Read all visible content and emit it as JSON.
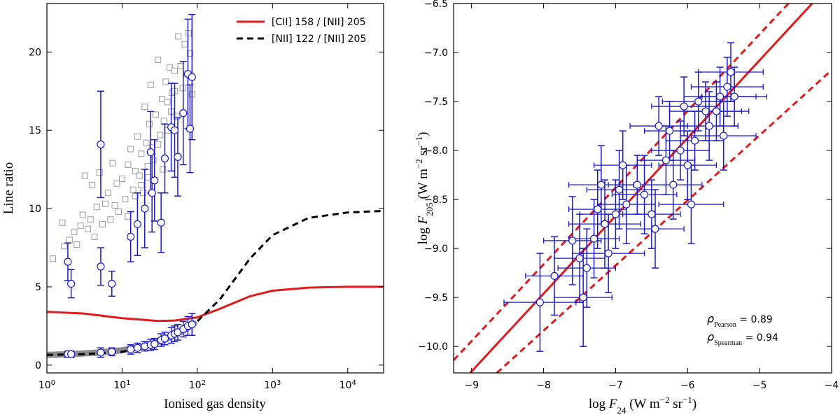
{
  "chart_data": [
    {
      "type": "scatter",
      "x_label": [
        {
          "text": "Ionised gas density"
        }
      ],
      "y_label": [
        {
          "text": "Line ratio"
        }
      ],
      "xscale": "log",
      "xlim": [
        1,
        30000
      ],
      "ylim": [
        -0.5,
        23.1
      ],
      "xticks": [
        {
          "value": 1,
          "base": "10",
          "exp": "0"
        },
        {
          "value": 10,
          "base": "10",
          "exp": "1"
        },
        {
          "value": 100,
          "base": "10",
          "exp": "2"
        },
        {
          "value": 1000,
          "base": "10",
          "exp": "3"
        },
        {
          "value": 10000,
          "base": "10",
          "exp": "4"
        }
      ],
      "yticks": [
        0,
        5,
        10,
        15,
        20
      ],
      "legend": "upper right",
      "series": [
        {
          "marker": "square",
          "color": "#9a9a9a",
          "x": [
            1.2,
            1.6,
            1.7,
            2.0,
            2.3,
            2.5,
            2.8,
            3.0,
            3.2,
            3.5,
            3.8,
            4.0,
            4.3,
            4.6,
            5.0,
            5.5,
            6.0,
            6.5,
            7.0,
            7.5,
            8.0,
            8.5,
            9.0,
            10,
            11,
            12,
            13,
            14,
            15,
            16,
            17,
            18,
            19,
            20,
            21,
            22,
            23,
            24,
            26,
            28,
            30,
            32,
            34,
            36,
            38,
            40,
            43,
            46,
            50,
            53,
            56,
            60,
            64,
            68,
            72,
            76,
            80,
            85,
            12,
            15,
            18,
            22,
            25,
            30,
            35,
            40,
            45,
            50
          ],
          "values": [
            6.8,
            9.1,
            7.6,
            8.0,
            8.5,
            7.7,
            8.9,
            9.6,
            12.1,
            8.7,
            9.3,
            11.5,
            8.2,
            10.1,
            12.3,
            9.0,
            10.3,
            11.0,
            9.3,
            12.9,
            10.2,
            11.6,
            9.8,
            11.9,
            10.6,
            12.8,
            13.8,
            11.2,
            12.4,
            14.6,
            12.1,
            13.5,
            11.0,
            16.5,
            14.2,
            12.7,
            15.4,
            17.9,
            13.1,
            16.0,
            19.5,
            14.7,
            17.0,
            15.6,
            18.1,
            16.8,
            19.0,
            17.4,
            18.8,
            15.9,
            21.0,
            19.1,
            17.7,
            20.5,
            18.6,
            21.2,
            19.9,
            17.3,
            9.5,
            10.8,
            11.5,
            12.0,
            13.9,
            14.1,
            12.5,
            15.0,
            16.2,
            17.5
          ]
        },
        {
          "line": "band",
          "color": "#808080",
          "x": [
            1,
            2,
            5,
            10,
            20,
            40,
            70,
            90
          ],
          "values": [
            0.65,
            0.7,
            0.8,
            0.95,
            1.2,
            1.7,
            2.3,
            2.65
          ]
        },
        {
          "name": "[CII] 158 / [NII] 205",
          "line": "solid",
          "color": "#e31a1c",
          "x": [
            1,
            3,
            10,
            30,
            50,
            100,
            200,
            500,
            1000,
            3000,
            10000,
            30000
          ],
          "values": [
            3.4,
            3.3,
            3.0,
            2.82,
            2.85,
            3.05,
            3.6,
            4.4,
            4.75,
            4.95,
            5.0,
            5.0
          ]
        },
        {
          "name": "[NII] 122 / [NII] 205",
          "line": "dashed",
          "color": "#000000",
          "x": [
            1,
            3,
            10,
            30,
            50,
            100,
            200,
            500,
            1000,
            3000,
            10000,
            30000
          ],
          "values": [
            0.65,
            0.7,
            0.85,
            1.4,
            1.9,
            2.8,
            4.2,
            6.8,
            8.3,
            9.4,
            9.75,
            9.85
          ]
        },
        {
          "marker": "circle",
          "color": "#1a1acc",
          "x": [
            1.9,
            2.1,
            5.2,
            5.2,
            7.3,
            13,
            16,
            20,
            24,
            25,
            27,
            33,
            37,
            45,
            50,
            55,
            65,
            75,
            80,
            85
          ],
          "values": [
            6.6,
            5.2,
            14.1,
            6.3,
            5.2,
            8.2,
            9.0,
            10.0,
            13.6,
            11.0,
            11.8,
            9.1,
            13.2,
            15.2,
            15.0,
            13.3,
            16.1,
            18.6,
            15.1,
            18.4
          ],
          "errors": [
            1.2,
            0.9,
            3.4,
            1.2,
            0.8,
            1.6,
            2.0,
            2.5,
            2.6,
            2.5,
            2.6,
            1.9,
            2.2,
            2.8,
            3.0,
            2.5,
            3.3,
            3.5,
            2.8,
            4.0
          ]
        },
        {
          "marker": "circle",
          "color": "#1a1acc",
          "x": [
            1.9,
            2.1,
            5.2,
            7.3,
            13,
            16,
            20,
            24,
            27,
            33,
            37,
            45,
            50,
            55,
            65,
            75,
            85
          ],
          "values": [
            0.7,
            0.7,
            0.8,
            0.85,
            1.0,
            1.1,
            1.2,
            1.3,
            1.35,
            1.6,
            1.7,
            1.9,
            2.0,
            2.1,
            2.3,
            2.5,
            2.6
          ],
          "errors": [
            0.2,
            0.2,
            0.3,
            0.25,
            0.3,
            0.3,
            0.3,
            0.35,
            0.35,
            0.4,
            0.4,
            0.5,
            0.5,
            0.5,
            0.5,
            0.6,
            0.7
          ]
        }
      ]
    },
    {
      "type": "scatter",
      "x_label": [
        {
          "text": "log "
        },
        {
          "text": "F",
          "style": "italic"
        },
        {
          "text": "24",
          "style": "sub"
        },
        {
          "text": " (W m"
        },
        {
          "text": "−2",
          "style": "sup"
        },
        {
          "text": " sr"
        },
        {
          "text": "−1",
          "style": "sup"
        },
        {
          "text": ")"
        }
      ],
      "y_label": [
        {
          "text": "log "
        },
        {
          "text": "F",
          "style": "italic"
        },
        {
          "text": "205",
          "style": "sub"
        },
        {
          "text": " (W m"
        },
        {
          "text": "−2",
          "style": "sup"
        },
        {
          "text": " sr"
        },
        {
          "text": "−1",
          "style": "sup"
        },
        {
          "text": ")"
        }
      ],
      "xlim": [
        -9.25,
        -4
      ],
      "ylim": [
        -10.27,
        -6.5
      ],
      "xticks": [
        {
          "value": -9,
          "label": "−9"
        },
        {
          "value": -8,
          "label": "−8"
        },
        {
          "value": -7,
          "label": "−7"
        },
        {
          "value": -6,
          "label": "−6"
        },
        {
          "value": -5,
          "label": "−5"
        },
        {
          "value": -4,
          "label": "−4"
        }
      ],
      "yticks": [
        {
          "value": -6.5,
          "label": "−6.5"
        },
        {
          "value": -7.0,
          "label": "−7.0"
        },
        {
          "value": -7.5,
          "label": "−7.5"
        },
        {
          "value": -8.0,
          "label": "−8.0"
        },
        {
          "value": -8.5,
          "label": "−8.5"
        },
        {
          "value": -9.0,
          "label": "−9.0"
        },
        {
          "value": -9.5,
          "label": "−9.5"
        },
        {
          "value": -10.0,
          "label": "−10.0"
        }
      ],
      "annotations": [
        {
          "symbol": "ρ",
          "sub": "Pearson",
          "text": " = 0.89"
        },
        {
          "symbol": "ρ",
          "sub": "Spearman",
          "text": " = 0.94"
        }
      ],
      "series": [
        {
          "line": "solid",
          "color": "#e31a1c",
          "x": [
            -9.02,
            -4.27
          ],
          "values": [
            -10.27,
            -6.5
          ]
        },
        {
          "line": "dashed",
          "color": "#e31a1c",
          "x": [
            -9.25,
            -4.6
          ],
          "values": [
            -10.14,
            -6.5
          ]
        },
        {
          "line": "dashed",
          "color": "#e31a1c",
          "x": [
            -8.65,
            -4.0
          ],
          "values": [
            -10.27,
            -7.18
          ]
        },
        {
          "marker": "circle",
          "color": "#1a1acc",
          "x": [
            -8.05,
            -7.85,
            -7.6,
            -7.5,
            -7.45,
            -7.4,
            -7.3,
            -7.25,
            -7.2,
            -7.15,
            -7.1,
            -7.0,
            -6.95,
            -6.9,
            -6.85,
            -6.7,
            -6.6,
            -6.5,
            -6.45,
            -6.4,
            -6.3,
            -6.25,
            -6.2,
            -6.1,
            -6.0,
            -5.95,
            -5.9,
            -5.85,
            -5.75,
            -5.7,
            -5.6,
            -5.55,
            -5.5,
            -5.45,
            -5.4,
            -5.35,
            -6.05
          ],
          "values": [
            -9.55,
            -9.28,
            -8.92,
            -9.1,
            -9.5,
            -9.2,
            -8.9,
            -8.6,
            -8.35,
            -8.75,
            -9.05,
            -8.65,
            -8.4,
            -8.15,
            -8.55,
            -8.35,
            -8.45,
            -8.65,
            -8.8,
            -7.75,
            -8.1,
            -7.8,
            -8.35,
            -8.0,
            -8.15,
            -8.55,
            -7.9,
            -7.5,
            -7.6,
            -7.75,
            -7.6,
            -7.45,
            -7.85,
            -7.35,
            -7.2,
            -7.45,
            -7.55
          ],
          "xerrors": [
            0.5,
            0.4,
            0.4,
            0.35,
            0.4,
            0.4,
            0.35,
            0.4,
            0.45,
            0.5,
            0.5,
            0.5,
            0.45,
            0.4,
            0.4,
            0.4,
            0.45,
            0.4,
            0.4,
            0.4,
            0.4,
            0.35,
            0.4,
            0.4,
            0.4,
            0.45,
            0.4,
            0.5,
            0.5,
            0.4,
            0.45,
            0.5,
            0.45,
            0.5,
            0.45,
            0.45,
            0.45
          ],
          "errors": [
            0.5,
            0.4,
            0.45,
            0.45,
            0.5,
            0.4,
            0.4,
            0.4,
            0.4,
            0.45,
            0.4,
            0.35,
            0.4,
            0.35,
            0.4,
            0.3,
            0.4,
            0.35,
            0.4,
            0.3,
            0.35,
            0.3,
            0.35,
            0.3,
            0.35,
            0.4,
            0.3,
            0.3,
            0.3,
            0.35,
            0.3,
            0.3,
            0.35,
            0.3,
            0.3,
            0.3,
            0.3
          ]
        }
      ]
    }
  ]
}
